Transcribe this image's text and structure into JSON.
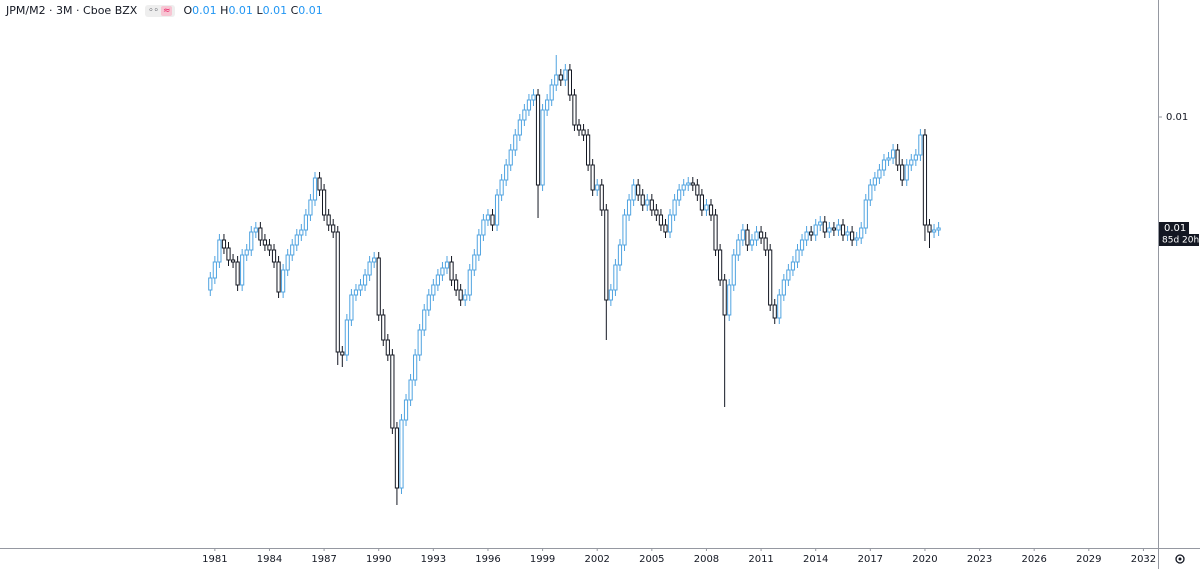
{
  "header": {
    "symbol": "JPM/M2 · 3M · Cboe BZX",
    "ohlc": [
      {
        "key": "O",
        "value": 0.01
      },
      {
        "key": "H",
        "value": 0.01
      },
      {
        "key": "L",
        "value": 0.01
      },
      {
        "key": "C",
        "value": 0.01
      }
    ]
  },
  "chart_data": {
    "type": "candlestick",
    "up_color": "#4fa3e0",
    "down_color": "#131722",
    "xlim": [
      1969.2,
      2032.8
    ],
    "xticks": [
      1981,
      1984,
      1987,
      1990,
      1993,
      1996,
      1999,
      2002,
      2005,
      2008,
      2011,
      2014,
      2017,
      2020,
      2023,
      2026,
      2029,
      2032
    ],
    "ylim": [
      0.00569,
      0.01117
    ],
    "yticks": [
      0.01
    ],
    "last_price_label": "0.01",
    "countdown": "85d 20h",
    "x": [
      1980.75,
      1981,
      1981.25,
      1981.5,
      1981.75,
      1982,
      1982.25,
      1982.5,
      1982.75,
      1983,
      1983.25,
      1983.5,
      1983.75,
      1984,
      1984.25,
      1984.5,
      1984.75,
      1985,
      1985.25,
      1985.5,
      1985.75,
      1986,
      1986.25,
      1986.5,
      1986.75,
      1987,
      1987.25,
      1987.5,
      1987.75,
      1988,
      1988.25,
      1988.5,
      1988.75,
      1989,
      1989.25,
      1989.5,
      1989.75,
      1990,
      1990.25,
      1990.5,
      1990.75,
      1991,
      1991.25,
      1991.5,
      1991.75,
      1992,
      1992.25,
      1992.5,
      1992.75,
      1993,
      1993.25,
      1993.5,
      1993.75,
      1994,
      1994.25,
      1994.5,
      1994.75,
      1995,
      1995.25,
      1995.5,
      1995.75,
      1996,
      1996.25,
      1996.5,
      1996.75,
      1997,
      1997.25,
      1997.5,
      1997.75,
      1998,
      1998.25,
      1998.5,
      1998.75,
      1999,
      1999.25,
      1999.5,
      1999.75,
      2000,
      2000.25,
      2000.5,
      2000.75,
      2001,
      2001.25,
      2001.5,
      2001.75,
      2002,
      2002.25,
      2002.5,
      2002.75,
      2003,
      2003.25,
      2003.5,
      2003.75,
      2004,
      2004.25,
      2004.5,
      2004.75,
      2005,
      2005.25,
      2005.5,
      2005.75,
      2006,
      2006.25,
      2006.5,
      2006.75,
      2007,
      2007.25,
      2007.5,
      2007.75,
      2008,
      2008.25,
      2008.5,
      2008.75,
      2009,
      2009.25,
      2009.5,
      2009.75,
      2010,
      2010.25,
      2010.5,
      2010.75,
      2011,
      2011.25,
      2011.5,
      2011.75,
      2012,
      2012.25,
      2012.5,
      2012.75,
      2013,
      2013.25,
      2013.5,
      2013.75,
      2014,
      2014.25,
      2014.5,
      2014.75,
      2015,
      2015.25,
      2015.5,
      2015.75,
      2016,
      2016.25,
      2016.5,
      2016.75,
      2017,
      2017.25,
      2017.5,
      2017.75,
      2018,
      2018.25,
      2018.5,
      2018.75,
      2019,
      2019.25,
      2019.5,
      2019.75,
      2020,
      2020.25,
      2020.5,
      2020.75
    ],
    "open": [
      0.00827,
      0.00839,
      0.00855,
      0.00877,
      0.00869,
      0.00857,
      0.00855,
      0.00832,
      0.00862,
      0.00867,
      0.00885,
      0.00889,
      0.00877,
      0.00872,
      0.00867,
      0.00855,
      0.00825,
      0.00847,
      0.00862,
      0.00872,
      0.00882,
      0.00887,
      0.00902,
      0.00917,
      0.00939,
      0.00927,
      0.00902,
      0.00892,
      0.00885,
      0.00765,
      0.00762,
      0.00797,
      0.00822,
      0.00827,
      0.00832,
      0.00842,
      0.00855,
      0.00859,
      0.00802,
      0.00777,
      0.00762,
      0.00689,
      0.00629,
      0.00697,
      0.00717,
      0.00737,
      0.00762,
      0.00787,
      0.00807,
      0.00822,
      0.00832,
      0.00842,
      0.00849,
      0.00855,
      0.00837,
      0.00827,
      0.00817,
      0.00822,
      0.00847,
      0.00862,
      0.00882,
      0.00897,
      0.00902,
      0.00892,
      0.00922,
      0.00937,
      0.00952,
      0.00967,
      0.00982,
      0.00997,
      0.01007,
      0.01017,
      0.01022,
      0.00932,
      0.01007,
      0.01017,
      0.01032,
      0.01042,
      0.01037,
      0.01047,
      0.01022,
      0.00992,
      0.00987,
      0.00982,
      0.00952,
      0.00927,
      0.00932,
      0.00907,
      0.00817,
      0.00827,
      0.00852,
      0.00872,
      0.00902,
      0.00917,
      0.00932,
      0.00922,
      0.00912,
      0.00917,
      0.00907,
      0.00902,
      0.00892,
      0.00885,
      0.00902,
      0.00917,
      0.00927,
      0.00932,
      0.00934,
      0.00932,
      0.00922,
      0.00907,
      0.00912,
      0.00902,
      0.00867,
      0.00837,
      0.00802,
      0.00832,
      0.00862,
      0.00877,
      0.00887,
      0.00872,
      0.00877,
      0.00885,
      0.00879,
      0.00867,
      0.00812,
      0.00799,
      0.00822,
      0.00837,
      0.00847,
      0.00855,
      0.00867,
      0.00877,
      0.00885,
      0.00882,
      0.00892,
      0.00895,
      0.00885,
      0.00889,
      0.00887,
      0.00892,
      0.00882,
      0.00885,
      0.00877,
      0.00879,
      0.00889,
      0.00917,
      0.00932,
      0.00939,
      0.00947,
      0.00957,
      0.00959,
      0.00967,
      0.00952,
      0.00937,
      0.00952,
      0.00957,
      0.00962,
      0.00982,
      0.00892,
      0.00885,
      0.00887
    ],
    "high": [
      0.00845,
      0.00861,
      0.00883,
      0.00883,
      0.00875,
      0.00863,
      0.00861,
      0.00868,
      0.00873,
      0.00891,
      0.00895,
      0.00895,
      0.00883,
      0.00878,
      0.00873,
      0.00861,
      0.00853,
      0.00868,
      0.00878,
      0.00888,
      0.00893,
      0.00908,
      0.00923,
      0.00945,
      0.00945,
      0.00933,
      0.00908,
      0.00898,
      0.00891,
      0.00771,
      0.00803,
      0.00828,
      0.00833,
      0.00838,
      0.00848,
      0.00861,
      0.00865,
      0.00865,
      0.00808,
      0.00783,
      0.00768,
      0.00695,
      0.00703,
      0.00723,
      0.00743,
      0.00768,
      0.00793,
      0.00813,
      0.00828,
      0.00838,
      0.00848,
      0.00855,
      0.00861,
      0.00861,
      0.00843,
      0.00833,
      0.00828,
      0.00853,
      0.00868,
      0.00888,
      0.00903,
      0.00908,
      0.00908,
      0.00928,
      0.00943,
      0.00958,
      0.00973,
      0.00988,
      0.01003,
      0.01013,
      0.01023,
      0.01028,
      0.01028,
      0.01013,
      0.01023,
      0.01038,
      0.01062,
      0.01048,
      0.01053,
      0.01053,
      0.01028,
      0.00998,
      0.00993,
      0.00988,
      0.00958,
      0.00938,
      0.00938,
      0.00913,
      0.00833,
      0.00858,
      0.00878,
      0.00908,
      0.00923,
      0.00938,
      0.00938,
      0.00928,
      0.00923,
      0.00923,
      0.00913,
      0.00908,
      0.00898,
      0.00908,
      0.00923,
      0.00933,
      0.00938,
      0.0094,
      0.0094,
      0.00938,
      0.00928,
      0.00918,
      0.00918,
      0.00908,
      0.00873,
      0.00843,
      0.00838,
      0.00868,
      0.00883,
      0.00893,
      0.00893,
      0.00883,
      0.00891,
      0.00891,
      0.00885,
      0.00873,
      0.00818,
      0.00828,
      0.00843,
      0.00853,
      0.00861,
      0.00873,
      0.00883,
      0.00891,
      0.00891,
      0.00898,
      0.00901,
      0.00901,
      0.00895,
      0.00895,
      0.00898,
      0.00898,
      0.00891,
      0.00891,
      0.00885,
      0.00895,
      0.00923,
      0.00938,
      0.00945,
      0.00953,
      0.00963,
      0.00965,
      0.00973,
      0.00973,
      0.00958,
      0.00958,
      0.00963,
      0.00968,
      0.00988,
      0.00988,
      0.00898,
      0.00893,
      0.00895
    ],
    "low": [
      0.00821,
      0.00833,
      0.00849,
      0.00863,
      0.00851,
      0.00849,
      0.00826,
      0.00826,
      0.00856,
      0.00861,
      0.00879,
      0.00871,
      0.00866,
      0.00861,
      0.00849,
      0.00819,
      0.00819,
      0.00841,
      0.00856,
      0.00866,
      0.00876,
      0.00881,
      0.00896,
      0.00911,
      0.00921,
      0.00896,
      0.00886,
      0.00879,
      0.00752,
      0.0075,
      0.00756,
      0.00791,
      0.00816,
      0.00821,
      0.00826,
      0.00836,
      0.00849,
      0.00796,
      0.00771,
      0.00756,
      0.00683,
      0.00612,
      0.00623,
      0.00691,
      0.00711,
      0.00731,
      0.00756,
      0.00781,
      0.00801,
      0.00816,
      0.00826,
      0.00836,
      0.00843,
      0.00831,
      0.00821,
      0.00811,
      0.00811,
      0.00816,
      0.00841,
      0.00856,
      0.00876,
      0.00891,
      0.00886,
      0.00886,
      0.00916,
      0.00931,
      0.00946,
      0.00961,
      0.00976,
      0.00991,
      0.01001,
      0.01011,
      0.00899,
      0.00926,
      0.01001,
      0.01011,
      0.01026,
      0.01031,
      0.01031,
      0.01016,
      0.00986,
      0.00981,
      0.00976,
      0.00946,
      0.00921,
      0.00921,
      0.00901,
      0.00777,
      0.00811,
      0.00821,
      0.00846,
      0.00866,
      0.00896,
      0.00911,
      0.00916,
      0.00906,
      0.00906,
      0.00901,
      0.00896,
      0.00886,
      0.00879,
      0.00879,
      0.00896,
      0.00911,
      0.00921,
      0.00926,
      0.00926,
      0.00916,
      0.00901,
      0.00901,
      0.00896,
      0.00861,
      0.00831,
      0.0071,
      0.00796,
      0.00826,
      0.00856,
      0.00871,
      0.00866,
      0.00866,
      0.00871,
      0.00873,
      0.00861,
      0.00806,
      0.00793,
      0.00793,
      0.00816,
      0.00831,
      0.00841,
      0.00849,
      0.00861,
      0.00871,
      0.00876,
      0.00876,
      0.00886,
      0.00879,
      0.00879,
      0.00881,
      0.00881,
      0.00876,
      0.00876,
      0.00871,
      0.00871,
      0.00873,
      0.00883,
      0.00911,
      0.00926,
      0.00933,
      0.00941,
      0.00951,
      0.00953,
      0.00946,
      0.00931,
      0.00931,
      0.00946,
      0.00951,
      0.00956,
      0.00876,
      0.00869,
      0.00879,
      0.00881
    ],
    "close": [
      0.00839,
      0.00855,
      0.00877,
      0.00869,
      0.00857,
      0.00855,
      0.00832,
      0.00862,
      0.00867,
      0.00885,
      0.00889,
      0.00877,
      0.00872,
      0.00867,
      0.00855,
      0.00825,
      0.00847,
      0.00862,
      0.00872,
      0.00882,
      0.00887,
      0.00902,
      0.00917,
      0.00939,
      0.00927,
      0.00902,
      0.00892,
      0.00885,
      0.00765,
      0.00762,
      0.00797,
      0.00822,
      0.00827,
      0.00832,
      0.00842,
      0.00855,
      0.00859,
      0.00802,
      0.00777,
      0.00762,
      0.00689,
      0.00629,
      0.00697,
      0.00717,
      0.00737,
      0.00762,
      0.00787,
      0.00807,
      0.00822,
      0.00832,
      0.00842,
      0.00849,
      0.00855,
      0.00837,
      0.00827,
      0.00817,
      0.00822,
      0.00847,
      0.00862,
      0.00882,
      0.00897,
      0.00902,
      0.00892,
      0.00922,
      0.00937,
      0.00952,
      0.00967,
      0.00982,
      0.00997,
      0.01007,
      0.01017,
      0.01022,
      0.00932,
      0.01007,
      0.01017,
      0.01032,
      0.01042,
      0.01037,
      0.01047,
      0.01022,
      0.00992,
      0.00987,
      0.00982,
      0.00952,
      0.00927,
      0.00932,
      0.00907,
      0.00817,
      0.00827,
      0.00852,
      0.00872,
      0.00902,
      0.00917,
      0.00932,
      0.00922,
      0.00912,
      0.00917,
      0.00907,
      0.00902,
      0.00892,
      0.00885,
      0.00902,
      0.00917,
      0.00927,
      0.00932,
      0.00934,
      0.00932,
      0.00922,
      0.00907,
      0.00912,
      0.00902,
      0.00867,
      0.00837,
      0.00802,
      0.00832,
      0.00862,
      0.00877,
      0.00887,
      0.00872,
      0.00877,
      0.00885,
      0.00879,
      0.00867,
      0.00812,
      0.00799,
      0.00822,
      0.00837,
      0.00847,
      0.00855,
      0.00867,
      0.00877,
      0.00885,
      0.00882,
      0.00892,
      0.00895,
      0.00885,
      0.00889,
      0.00887,
      0.00892,
      0.00882,
      0.00885,
      0.00877,
      0.00879,
      0.00889,
      0.00917,
      0.00932,
      0.00939,
      0.00947,
      0.00957,
      0.00959,
      0.00967,
      0.00952,
      0.00937,
      0.00952,
      0.00957,
      0.00962,
      0.00982,
      0.00892,
      0.00885,
      0.00887,
      0.00889
    ]
  }
}
